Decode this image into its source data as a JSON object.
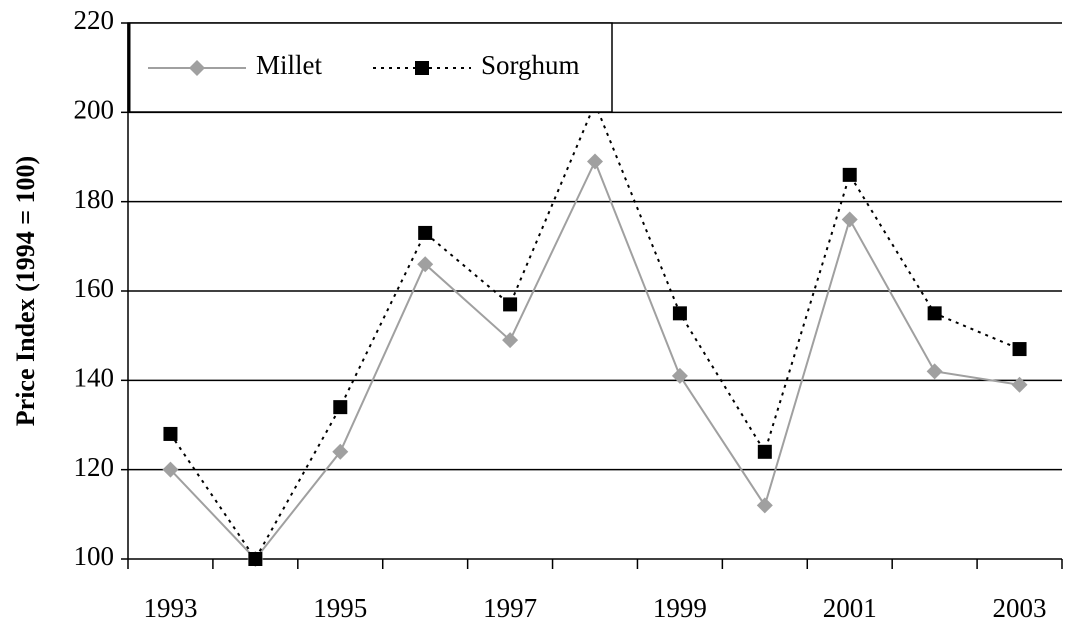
{
  "chart_data": {
    "type": "line",
    "ylabel": "Price Index (1994 = 100)",
    "categories": [
      "1993",
      null,
      "1995",
      null,
      "1997",
      null,
      "1999",
      null,
      "2001",
      null,
      "2003"
    ],
    "series": [
      {
        "name": "Millet",
        "color": "#a0a0a0",
        "marker": "diamond",
        "linestyle": "solid",
        "values": [
          120,
          100,
          124,
          166,
          149,
          189,
          141,
          112,
          176,
          142,
          139
        ]
      },
      {
        "name": "Sorghum",
        "color": "#000000",
        "marker": "square",
        "linestyle": "dotted",
        "values": [
          128,
          100,
          134,
          173,
          157,
          202,
          155,
          124,
          186,
          155,
          147
        ]
      }
    ],
    "ylim": [
      100,
      220
    ],
    "yticks": [
      100,
      120,
      140,
      160,
      180,
      200,
      220
    ],
    "grid": true,
    "legend": "upper left"
  }
}
